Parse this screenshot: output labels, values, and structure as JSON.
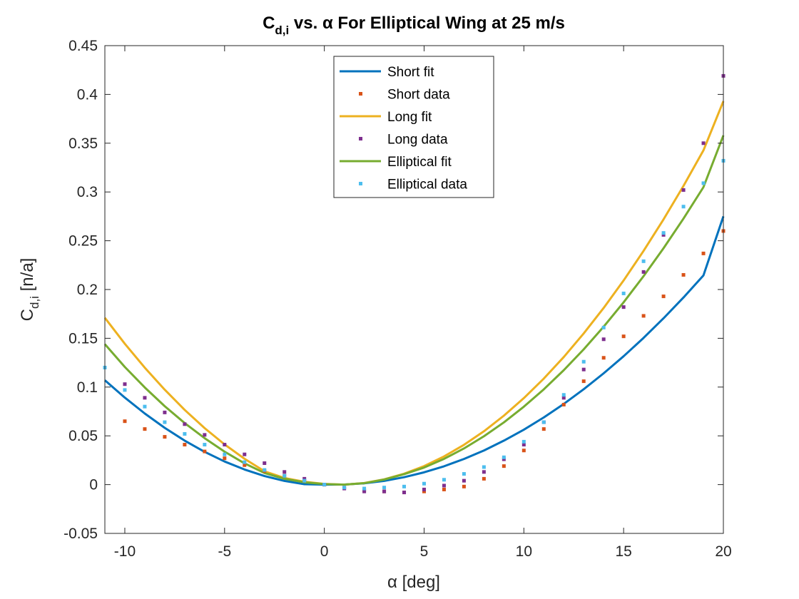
{
  "chart_data": {
    "type": "line",
    "title": {
      "main": "C",
      "sub": "d,i",
      "rest": " vs. α For Elliptical Wing at 25 m/s"
    },
    "xlabel": "α [deg]",
    "ylabel": {
      "main": "C",
      "sub": "d,i",
      "rest": " [n/a]"
    },
    "xlim": [
      -11,
      20
    ],
    "ylim": [
      -0.05,
      0.45
    ],
    "xticks": [
      -10,
      -5,
      0,
      5,
      10,
      15,
      20
    ],
    "yticks": [
      -0.05,
      0,
      0.05,
      0.1,
      0.15,
      0.2,
      0.25,
      0.3,
      0.35,
      0.4,
      0.45
    ],
    "xtick_labels": [
      "-10",
      "-5",
      "0",
      "5",
      "10",
      "15",
      "20"
    ],
    "ytick_labels": [
      "-0.05",
      "0",
      "0.05",
      "0.1",
      "0.15",
      "0.2",
      "0.25",
      "0.3",
      "0.35",
      "0.4",
      "0.45"
    ],
    "grid": false,
    "legend_position": "top-center",
    "series": [
      {
        "name": "Short fit",
        "kind": "line",
        "color": "#0072BD",
        "x": [
          -11,
          -10,
          -9,
          -8,
          -7,
          -6,
          -5,
          -4,
          -3,
          -2,
          -1,
          0,
          1,
          2,
          3,
          4,
          5,
          6,
          7,
          8,
          9,
          10,
          11,
          12,
          13,
          14,
          15,
          16,
          17,
          18,
          19,
          20
        ],
        "y": [
          0.107,
          0.0892,
          0.0729,
          0.0582,
          0.0451,
          0.0336,
          0.0237,
          0.0155,
          0.0088,
          0.0038,
          0.0004,
          0.0,
          0.0001,
          0.0013,
          0.0038,
          0.0076,
          0.0126,
          0.0188,
          0.0263,
          0.035,
          0.0451,
          0.0563,
          0.0689,
          0.0827,
          0.0978,
          0.1141,
          0.1316,
          0.1504,
          0.1705,
          0.1918,
          0.2144,
          0.275
        ]
      },
      {
        "name": "Short data",
        "kind": "scatter",
        "color": "#D95319",
        "x": [
          -10,
          -9,
          -8,
          -7,
          -6,
          -5,
          -4,
          -3,
          -2,
          -1,
          0,
          1,
          2,
          3,
          4,
          5,
          6,
          7,
          8,
          9,
          10,
          11,
          12,
          13,
          14,
          15,
          16,
          17,
          18,
          19,
          20
        ],
        "y": [
          0.065,
          0.057,
          0.049,
          0.041,
          0.034,
          0.027,
          0.02,
          0.014,
          0.009,
          0.004,
          0.0,
          -0.003,
          -0.006,
          -0.007,
          -0.008,
          -0.007,
          -0.005,
          -0.002,
          0.006,
          0.019,
          0.035,
          0.057,
          0.082,
          0.106,
          0.13,
          0.152,
          0.173,
          0.193,
          0.215,
          0.237,
          0.26
        ]
      },
      {
        "name": "Long fit",
        "kind": "line",
        "color": "#EDB120",
        "x": [
          -11,
          -10,
          -9,
          -8,
          -7,
          -6,
          -5,
          -4,
          -3,
          -2,
          -1,
          0,
          1,
          2,
          3,
          4,
          5,
          6,
          7,
          8,
          9,
          10,
          11,
          12,
          13,
          14,
          15,
          16,
          17,
          18,
          19,
          20
        ],
        "y": [
          0.171,
          0.1444,
          0.1199,
          0.0973,
          0.0766,
          0.0579,
          0.0412,
          0.0265,
          0.0137,
          0.0068,
          0.0029,
          0.0007,
          0.0,
          0.0016,
          0.0054,
          0.0112,
          0.019,
          0.0289,
          0.0408,
          0.0547,
          0.0707,
          0.0887,
          0.1087,
          0.1308,
          0.155,
          0.1811,
          0.2093,
          0.2396,
          0.2719,
          0.3062,
          0.3426,
          0.393
        ]
      },
      {
        "name": "Long data",
        "kind": "scatter",
        "color": "#7E2F8E",
        "x": [
          -10,
          -9,
          -8,
          -7,
          -6,
          -5,
          -4,
          -3,
          -2,
          -1,
          0,
          1,
          2,
          3,
          4,
          5,
          6,
          7,
          8,
          9,
          10,
          11,
          12,
          13,
          14,
          15,
          16,
          17,
          18,
          19,
          20
        ],
        "y": [
          0.103,
          0.089,
          0.074,
          0.062,
          0.051,
          0.041,
          0.031,
          0.022,
          0.013,
          0.006,
          0.0,
          -0.004,
          -0.007,
          -0.007,
          -0.008,
          -0.005,
          -0.001,
          0.004,
          0.013,
          0.026,
          0.041,
          0.064,
          0.089,
          0.118,
          0.149,
          0.182,
          0.218,
          0.256,
          0.302,
          0.35,
          0.419
        ]
      },
      {
        "name": "Elliptical fit",
        "kind": "line",
        "color": "#77AC30",
        "x": [
          -11,
          -10,
          -9,
          -8,
          -7,
          -6,
          -5,
          -4,
          -3,
          -2,
          -1,
          0,
          1,
          2,
          3,
          4,
          5,
          6,
          7,
          8,
          9,
          10,
          11,
          12,
          13,
          14,
          15,
          16,
          17,
          18,
          19,
          20
        ],
        "y": [
          0.144,
          0.1206,
          0.0996,
          0.0804,
          0.0631,
          0.0476,
          0.0338,
          0.0218,
          0.0119,
          0.006,
          0.0024,
          0.0005,
          0.0,
          0.0015,
          0.0052,
          0.0107,
          0.0175,
          0.0264,
          0.0371,
          0.0496,
          0.0638,
          0.0799,
          0.0977,
          0.1173,
          0.1387,
          0.1619,
          0.1869,
          0.2137,
          0.2423,
          0.2727,
          0.3049,
          0.358
        ]
      },
      {
        "name": "Elliptical data",
        "kind": "scatter",
        "color": "#4DBEEE",
        "x": [
          -11,
          -10,
          -9,
          -8,
          -7,
          -6,
          -5,
          -4,
          -3,
          -2,
          -1,
          0,
          1,
          2,
          3,
          4,
          5,
          6,
          7,
          8,
          9,
          10,
          11,
          12,
          13,
          14,
          15,
          16,
          17,
          18,
          19,
          20
        ],
        "y": [
          0.12,
          0.097,
          0.08,
          0.064,
          0.052,
          0.041,
          0.031,
          0.023,
          0.015,
          0.009,
          0.004,
          0.0,
          -0.003,
          -0.004,
          -0.003,
          -0.002,
          0.001,
          0.005,
          0.011,
          0.018,
          0.028,
          0.044,
          0.064,
          0.092,
          0.126,
          0.161,
          0.196,
          0.229,
          0.258,
          0.285,
          0.309,
          0.332
        ]
      }
    ]
  }
}
